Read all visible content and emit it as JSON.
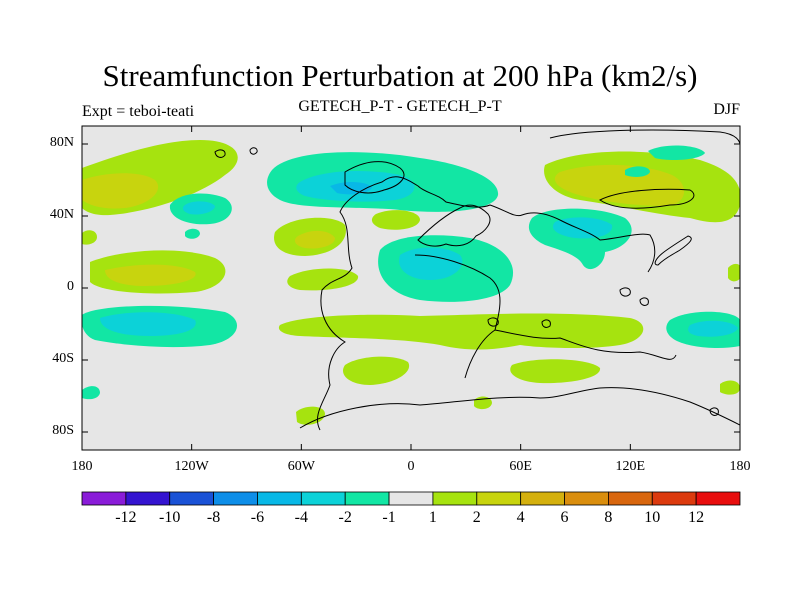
{
  "figure": {
    "title": "Streamfunction Perturbation at 200 hPa (km2/s)",
    "subtitle_left": "Expt = teboi-teati",
    "subtitle_center": "GETECH_P-T - GETECH_P-T",
    "subtitle_right": "DJF"
  },
  "map_data": {
    "type": "contour_map",
    "projection": "cylindrical-equidistant",
    "lon_range": [
      -180,
      180
    ],
    "lat_range": [
      -90,
      90
    ],
    "lon_ticks": [
      "180",
      "120W",
      "60W",
      "0",
      "60E",
      "120E",
      "180"
    ],
    "lat_ticks": [
      "80N",
      "40N",
      "0",
      "40S",
      "80S"
    ],
    "background_color": "#e6e6e6",
    "colorbar": {
      "colors": [
        "#8a1cd8",
        "#3414d0",
        "#1a52d6",
        "#0e8ee8",
        "#08b8e6",
        "#0cd2d8",
        "#12e6a4",
        "#e6e6e6",
        "#a6e30f",
        "#c8d40e",
        "#d4b00e",
        "#da8e0e",
        "#d8660e",
        "#dc3a0e",
        "#e80e0e"
      ],
      "labels": [
        "-12",
        "-10",
        "-8",
        "-6",
        "-4",
        "-2",
        "-1",
        "1",
        "2",
        "4",
        "6",
        "8",
        "10",
        "12"
      ]
    }
  }
}
